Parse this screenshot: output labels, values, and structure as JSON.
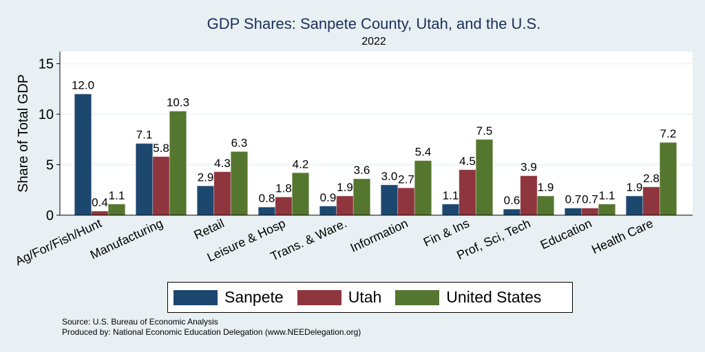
{
  "chart_data": {
    "type": "bar",
    "title": "GDP Shares: Sanpete County, Utah, and the U.S.",
    "subtitle": "2022",
    "ylabel": "Share of Total GDP",
    "xlabel": "",
    "ylim": [
      0,
      16.2
    ],
    "yticks": [
      0,
      5,
      10,
      15
    ],
    "grid": true,
    "legend_position": "bottom",
    "categories": [
      "Ag/For/Fish/Hunt",
      "Manufacturing",
      "Retail",
      "Leisure & Hosp",
      "Trans. & Ware.",
      "Information",
      "Fin & Ins",
      "Prof, Sci, Tech",
      "Education",
      "Health Care"
    ],
    "series": [
      {
        "name": "Sanpete",
        "color": "#1c476f",
        "values": [
          12.0,
          7.1,
          2.9,
          0.8,
          0.9,
          3.0,
          1.1,
          0.6,
          0.7,
          1.9
        ]
      },
      {
        "name": "Utah",
        "color": "#8f353d",
        "values": [
          0.4,
          5.8,
          4.3,
          1.8,
          1.9,
          2.7,
          4.5,
          3.9,
          0.7,
          2.8
        ]
      },
      {
        "name": "United States",
        "color": "#55762e",
        "values": [
          1.1,
          10.3,
          6.3,
          4.2,
          3.6,
          5.4,
          7.5,
          1.9,
          1.1,
          7.2
        ]
      }
    ]
  },
  "footer": {
    "source": "Source: U.S. Bureau of Economic Analysis",
    "produced_by": "Produced by: National Economic Education Delegation (www.NEEDelegation.org)"
  }
}
